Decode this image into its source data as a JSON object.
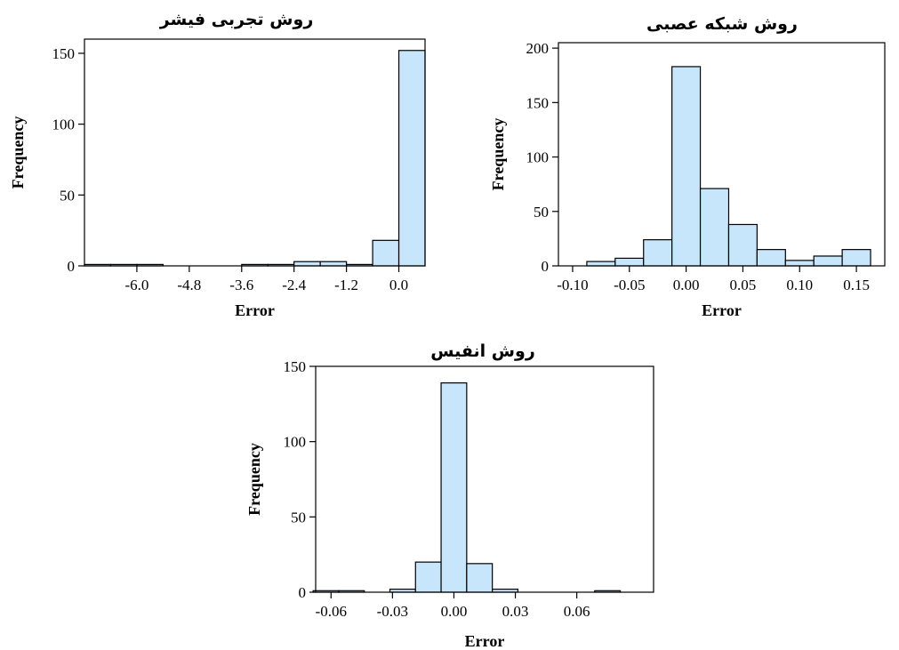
{
  "chart_data": [
    {
      "type": "bar",
      "title": "روش تجربی فیشر",
      "xlabel": "Error",
      "ylabel": "Frequency",
      "xlim": [
        -7.2,
        0.6
      ],
      "ylim": [
        0,
        160
      ],
      "xticks": [
        -6.0,
        -4.8,
        -3.6,
        -2.4,
        -1.2,
        0.0
      ],
      "xtick_labels": [
        "-6.0",
        "-4.8",
        "-3.6",
        "-2.4",
        "-1.2",
        "0.0"
      ],
      "yticks": [
        0,
        50,
        100,
        150
      ],
      "ytick_labels": [
        "0",
        "50",
        "100",
        "150"
      ],
      "bin_width": 0.6,
      "bins": [
        {
          "center": -6.9,
          "value": 1
        },
        {
          "center": -6.3,
          "value": 1
        },
        {
          "center": -5.7,
          "value": 1
        },
        {
          "center": -3.3,
          "value": 1
        },
        {
          "center": -2.7,
          "value": 1
        },
        {
          "center": -2.1,
          "value": 3
        },
        {
          "center": -1.5,
          "value": 3
        },
        {
          "center": -0.9,
          "value": 1
        },
        {
          "center": -0.3,
          "value": 18
        },
        {
          "center": 0.3,
          "value": 152
        }
      ]
    },
    {
      "type": "bar",
      "title": "روش شبکه عصبی",
      "xlabel": "Error",
      "ylabel": "Frequency",
      "xlim": [
        -0.1125,
        0.175
      ],
      "ylim": [
        0,
        205
      ],
      "xticks": [
        -0.1,
        -0.05,
        0.0,
        0.05,
        0.1,
        0.15
      ],
      "xtick_labels": [
        "-0.10",
        "-0.05",
        "0.00",
        "0.05",
        "0.10",
        "0.15"
      ],
      "yticks": [
        0,
        50,
        100,
        150,
        200
      ],
      "ytick_labels": [
        "0",
        "50",
        "100",
        "150",
        "200"
      ],
      "bin_width": 0.025,
      "bins": [
        {
          "center": -0.075,
          "value": 4
        },
        {
          "center": -0.05,
          "value": 7
        },
        {
          "center": -0.025,
          "value": 24
        },
        {
          "center": 0.0,
          "value": 183
        },
        {
          "center": 0.025,
          "value": 71
        },
        {
          "center": 0.05,
          "value": 38
        },
        {
          "center": 0.075,
          "value": 15
        },
        {
          "center": 0.1,
          "value": 5
        },
        {
          "center": 0.125,
          "value": 9
        },
        {
          "center": 0.15,
          "value": 15
        }
      ]
    },
    {
      "type": "bar",
      "title": "روش انفیس",
      "xlabel": "Error",
      "ylabel": "Frequency",
      "xlim": [
        -0.0675,
        0.0975
      ],
      "ylim": [
        0,
        150
      ],
      "xticks": [
        -0.06,
        -0.03,
        0.0,
        0.03,
        0.06
      ],
      "xtick_labels": [
        "-0.06",
        "-0.03",
        "0.00",
        "0.03",
        "0.06"
      ],
      "yticks": [
        0,
        50,
        100,
        150
      ],
      "ytick_labels": [
        "0",
        "50",
        "100",
        "150"
      ],
      "bin_width": 0.0125,
      "bins": [
        {
          "center": -0.0625,
          "value": 1
        },
        {
          "center": -0.05,
          "value": 1
        },
        {
          "center": -0.025,
          "value": 2
        },
        {
          "center": -0.0125,
          "value": 20
        },
        {
          "center": 0.0,
          "value": 139
        },
        {
          "center": 0.0125,
          "value": 19
        },
        {
          "center": 0.025,
          "value": 2
        },
        {
          "center": 0.075,
          "value": 1
        }
      ]
    }
  ]
}
